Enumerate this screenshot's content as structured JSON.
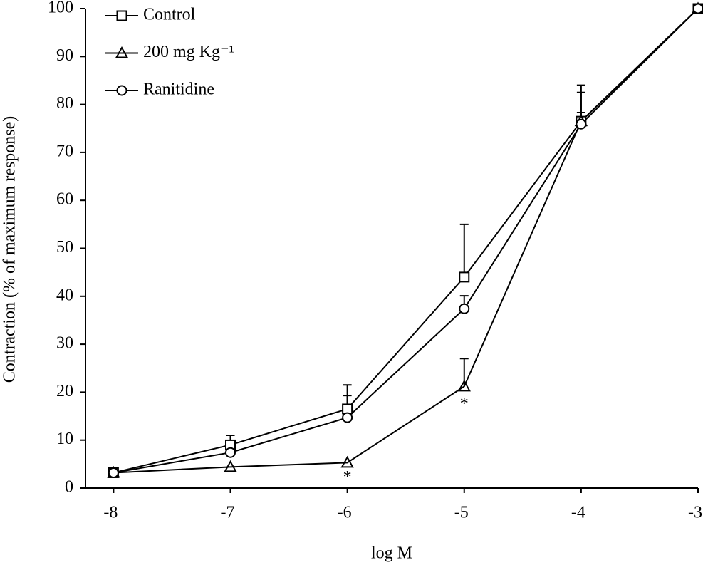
{
  "chart_data": {
    "type": "line",
    "x_label": "log M",
    "y_label": "Contraction (% of maximum response)",
    "x": [
      -8,
      -7,
      -6,
      -5,
      -4,
      -3
    ],
    "series": [
      {
        "name": "Control",
        "color": "#000000",
        "marker": "square",
        "values": [
          3.2,
          9,
          16.5,
          44,
          76.5,
          100
        ],
        "errors": [
          null,
          2,
          5,
          11,
          7.5,
          null
        ]
      },
      {
        "name": "200 mg Kg⁻¹",
        "color": "#000000",
        "marker": "triangle",
        "values": [
          3.2,
          4.4,
          5.3,
          21.2,
          76.5,
          100
        ],
        "errors": [
          null,
          null,
          null,
          5.8,
          6,
          null
        ]
      },
      {
        "name": "Ranitidine",
        "color": "#000000",
        "marker": "circle",
        "values": [
          3.2,
          7.4,
          14.7,
          37.4,
          75.9,
          100
        ],
        "errors": [
          null,
          null,
          4.6,
          2.7,
          2.4,
          null
        ]
      }
    ],
    "annotations": [
      {
        "text": "*",
        "x": -6,
        "y": 2
      },
      {
        "text": "*",
        "x": -5,
        "y": 17.3
      }
    ],
    "xlim": [
      -8.24,
      -3
    ],
    "xticks": [
      -8,
      -7,
      -6,
      -5,
      -4,
      -3
    ],
    "ylim": [
      0,
      100
    ],
    "yticks": [
      0,
      10,
      20,
      30,
      40,
      50,
      60,
      70,
      80,
      90,
      100
    ],
    "grid": false,
    "legend": "upper-left"
  }
}
